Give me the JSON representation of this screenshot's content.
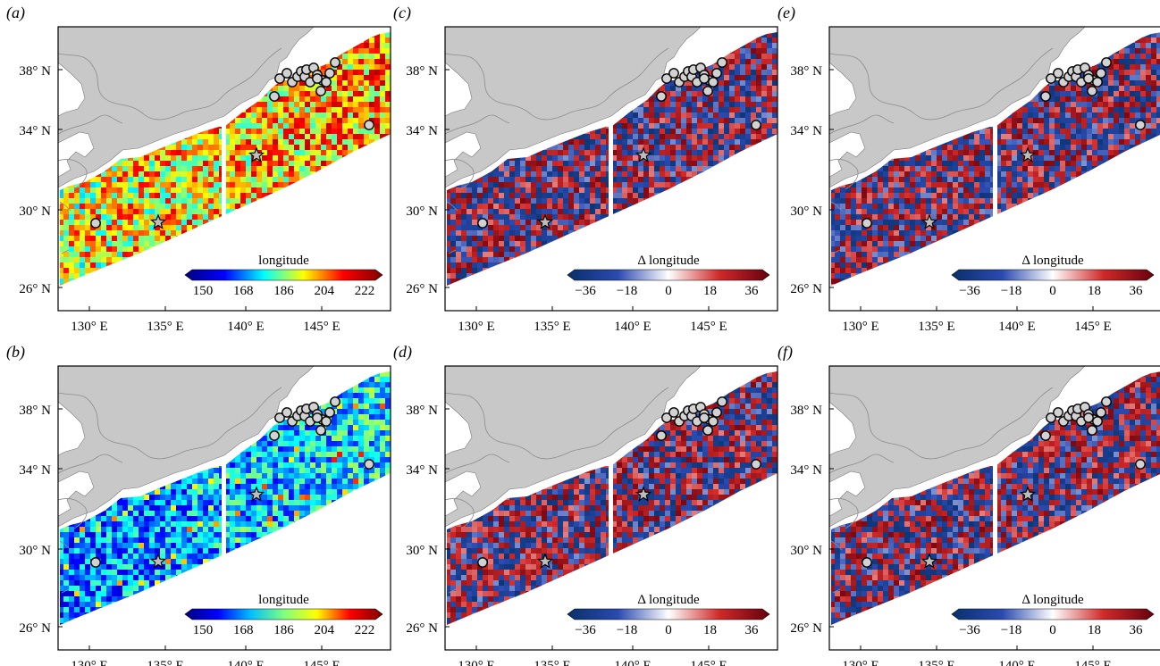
{
  "lat_labels": [
    "38° N",
    "34° N",
    "30° N",
    "26° N"
  ],
  "lon_labels": [
    "130° E",
    "135° E",
    "140° E",
    "145° E"
  ],
  "colorbars": {
    "absolute": {
      "title": "longitude",
      "ticks": [
        "150",
        "168",
        "186",
        "204",
        "222"
      ]
    },
    "difference": {
      "title": "Δ longitude",
      "ticks": [
        "−36",
        "−18",
        "0",
        "18",
        "36"
      ]
    }
  },
  "panels": [
    {
      "id": "a",
      "label": "(a)",
      "colormap": "jet-full",
      "colorbar": "absolute"
    },
    {
      "id": "b",
      "label": "(b)",
      "colormap": "jet-cool",
      "colorbar": "absolute"
    },
    {
      "id": "c",
      "label": "(c)",
      "colormap": "diverging",
      "colorbar": "difference"
    },
    {
      "id": "d",
      "label": "(d)",
      "colormap": "diverging",
      "colorbar": "difference"
    },
    {
      "id": "e",
      "label": "(e)",
      "colormap": "diverging",
      "colorbar": "difference"
    },
    {
      "id": "f",
      "label": "(f)",
      "colormap": "diverging",
      "colorbar": "difference"
    }
  ],
  "colors": {
    "land": "#c8c8c8",
    "coast_line": "#8c8c8c",
    "marker_fill": "#d2d2d2",
    "star_fill": "#bdbdbd",
    "jet": [
      "#00007f",
      "#0000ff",
      "#00ffff",
      "#ffff00",
      "#ff0000",
      "#7f0000"
    ],
    "diverging": [
      "#08306b",
      "#2b4ab0",
      "#ffffff",
      "#d02a2a",
      "#67000d"
    ]
  },
  "markers": {
    "circle_icon": "station-circle-icon",
    "star_icon": "epicenter-star-icon"
  }
}
